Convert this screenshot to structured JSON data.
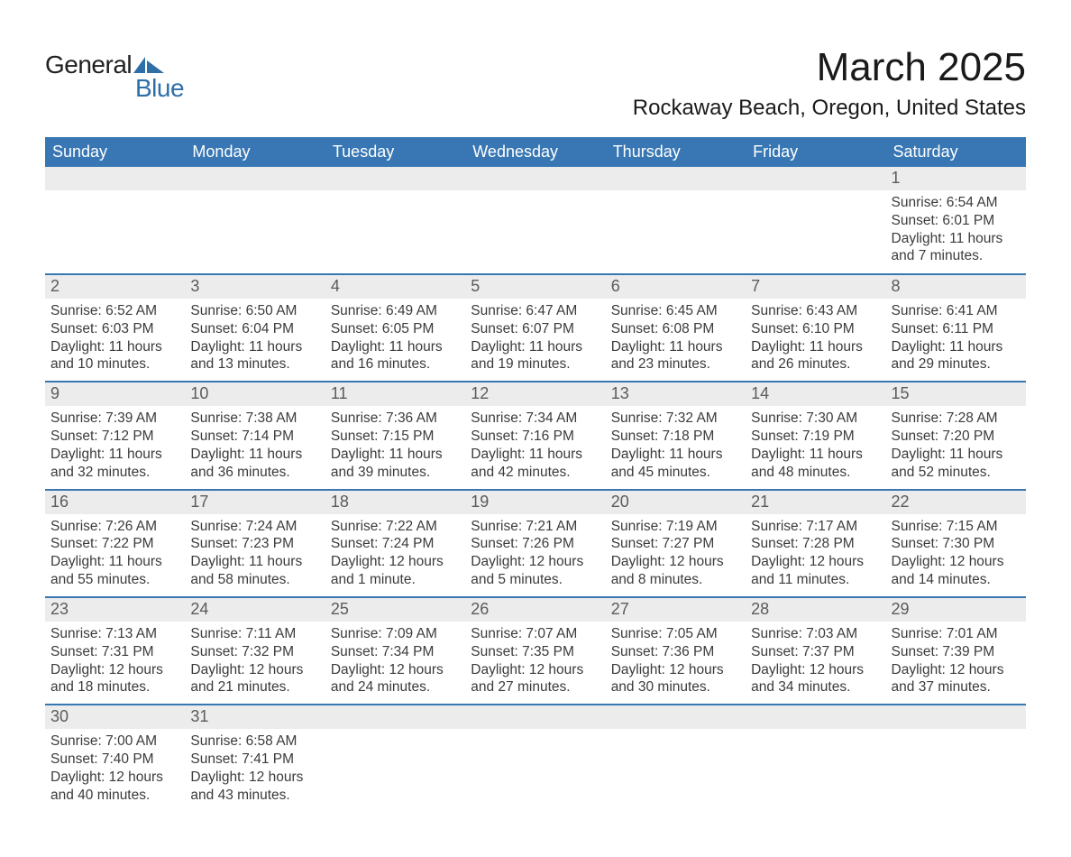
{
  "brand": {
    "name_part1": "General",
    "name_part2": "Blue",
    "logo_color": "#2f6fa8"
  },
  "title": "March 2025",
  "location": "Rockaway Beach, Oregon, United States",
  "colors": {
    "header_bg": "#3877b3",
    "header_text": "#ffffff",
    "daybar_bg": "#ececec",
    "daybar_text": "#5b5b5b",
    "body_text": "#3b3b3b",
    "row_divider": "#3877b3"
  },
  "typography": {
    "title_fontsize": 44,
    "location_fontsize": 24,
    "header_fontsize": 18,
    "daynum_fontsize": 18,
    "cell_fontsize": 15.5
  },
  "weekday_headers": [
    "Sunday",
    "Monday",
    "Tuesday",
    "Wednesday",
    "Thursday",
    "Friday",
    "Saturday"
  ],
  "weeks": [
    [
      null,
      null,
      null,
      null,
      null,
      null,
      {
        "n": 1,
        "sr": "6:54 AM",
        "ss": "6:01 PM",
        "dl": "11 hours and 7 minutes."
      }
    ],
    [
      {
        "n": 2,
        "sr": "6:52 AM",
        "ss": "6:03 PM",
        "dl": "11 hours and 10 minutes."
      },
      {
        "n": 3,
        "sr": "6:50 AM",
        "ss": "6:04 PM",
        "dl": "11 hours and 13 minutes."
      },
      {
        "n": 4,
        "sr": "6:49 AM",
        "ss": "6:05 PM",
        "dl": "11 hours and 16 minutes."
      },
      {
        "n": 5,
        "sr": "6:47 AM",
        "ss": "6:07 PM",
        "dl": "11 hours and 19 minutes."
      },
      {
        "n": 6,
        "sr": "6:45 AM",
        "ss": "6:08 PM",
        "dl": "11 hours and 23 minutes."
      },
      {
        "n": 7,
        "sr": "6:43 AM",
        "ss": "6:10 PM",
        "dl": "11 hours and 26 minutes."
      },
      {
        "n": 8,
        "sr": "6:41 AM",
        "ss": "6:11 PM",
        "dl": "11 hours and 29 minutes."
      }
    ],
    [
      {
        "n": 9,
        "sr": "7:39 AM",
        "ss": "7:12 PM",
        "dl": "11 hours and 32 minutes."
      },
      {
        "n": 10,
        "sr": "7:38 AM",
        "ss": "7:14 PM",
        "dl": "11 hours and 36 minutes."
      },
      {
        "n": 11,
        "sr": "7:36 AM",
        "ss": "7:15 PM",
        "dl": "11 hours and 39 minutes."
      },
      {
        "n": 12,
        "sr": "7:34 AM",
        "ss": "7:16 PM",
        "dl": "11 hours and 42 minutes."
      },
      {
        "n": 13,
        "sr": "7:32 AM",
        "ss": "7:18 PM",
        "dl": "11 hours and 45 minutes."
      },
      {
        "n": 14,
        "sr": "7:30 AM",
        "ss": "7:19 PM",
        "dl": "11 hours and 48 minutes."
      },
      {
        "n": 15,
        "sr": "7:28 AM",
        "ss": "7:20 PM",
        "dl": "11 hours and 52 minutes."
      }
    ],
    [
      {
        "n": 16,
        "sr": "7:26 AM",
        "ss": "7:22 PM",
        "dl": "11 hours and 55 minutes."
      },
      {
        "n": 17,
        "sr": "7:24 AM",
        "ss": "7:23 PM",
        "dl": "11 hours and 58 minutes."
      },
      {
        "n": 18,
        "sr": "7:22 AM",
        "ss": "7:24 PM",
        "dl": "12 hours and 1 minute."
      },
      {
        "n": 19,
        "sr": "7:21 AM",
        "ss": "7:26 PM",
        "dl": "12 hours and 5 minutes."
      },
      {
        "n": 20,
        "sr": "7:19 AM",
        "ss": "7:27 PM",
        "dl": "12 hours and 8 minutes."
      },
      {
        "n": 21,
        "sr": "7:17 AM",
        "ss": "7:28 PM",
        "dl": "12 hours and 11 minutes."
      },
      {
        "n": 22,
        "sr": "7:15 AM",
        "ss": "7:30 PM",
        "dl": "12 hours and 14 minutes."
      }
    ],
    [
      {
        "n": 23,
        "sr": "7:13 AM",
        "ss": "7:31 PM",
        "dl": "12 hours and 18 minutes."
      },
      {
        "n": 24,
        "sr": "7:11 AM",
        "ss": "7:32 PM",
        "dl": "12 hours and 21 minutes."
      },
      {
        "n": 25,
        "sr": "7:09 AM",
        "ss": "7:34 PM",
        "dl": "12 hours and 24 minutes."
      },
      {
        "n": 26,
        "sr": "7:07 AM",
        "ss": "7:35 PM",
        "dl": "12 hours and 27 minutes."
      },
      {
        "n": 27,
        "sr": "7:05 AM",
        "ss": "7:36 PM",
        "dl": "12 hours and 30 minutes."
      },
      {
        "n": 28,
        "sr": "7:03 AM",
        "ss": "7:37 PM",
        "dl": "12 hours and 34 minutes."
      },
      {
        "n": 29,
        "sr": "7:01 AM",
        "ss": "7:39 PM",
        "dl": "12 hours and 37 minutes."
      }
    ],
    [
      {
        "n": 30,
        "sr": "7:00 AM",
        "ss": "7:40 PM",
        "dl": "12 hours and 40 minutes."
      },
      {
        "n": 31,
        "sr": "6:58 AM",
        "ss": "7:41 PM",
        "dl": "12 hours and 43 minutes."
      },
      null,
      null,
      null,
      null,
      null
    ]
  ],
  "labels": {
    "sunrise": "Sunrise:",
    "sunset": "Sunset:",
    "daylight": "Daylight:"
  }
}
